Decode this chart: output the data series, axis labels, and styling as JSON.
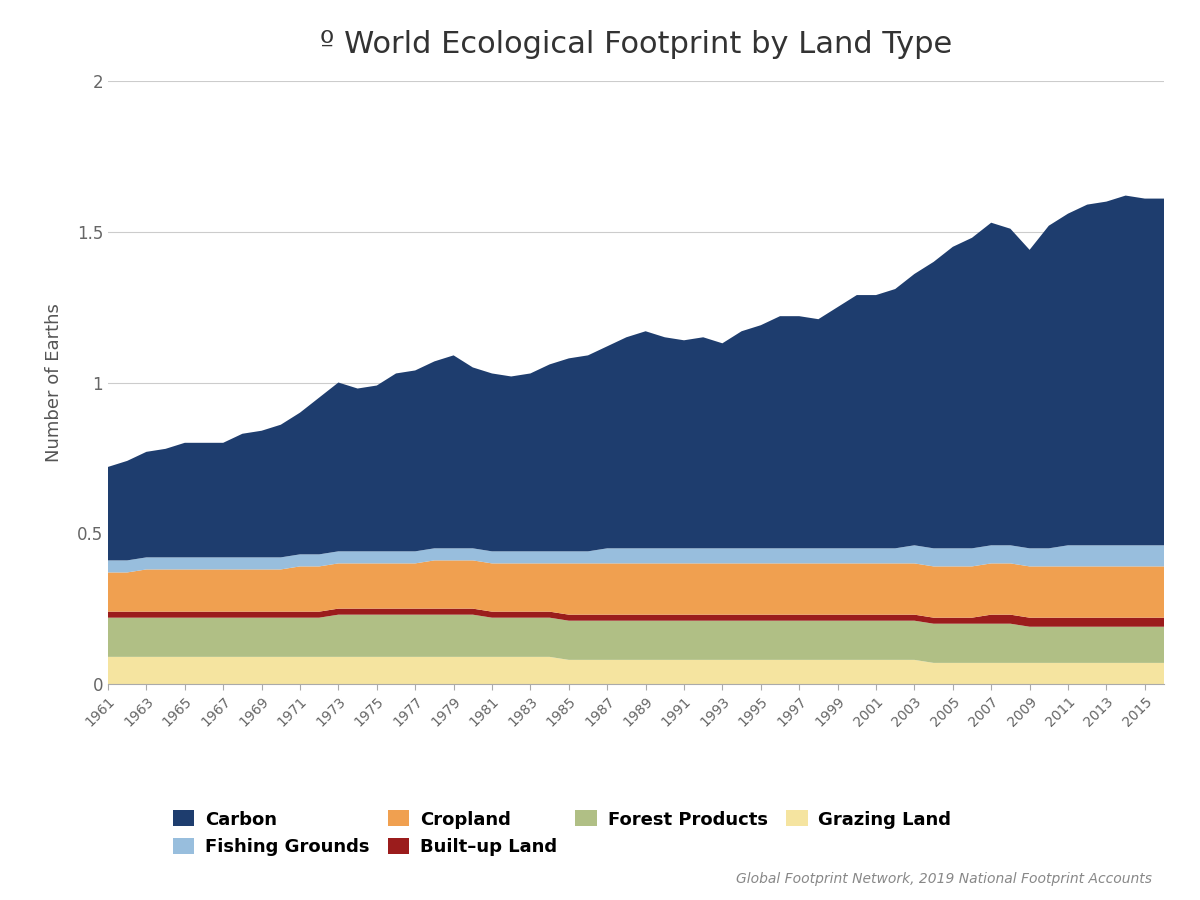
{
  "title": "º World Ecological Footprint by Land Type",
  "ylabel": "Number of Earths",
  "source": "Global Footprint Network, 2019 National Footprint Accounts",
  "background_color": "#ffffff",
  "title_fontsize": 22,
  "ylabel_fontsize": 13,
  "years": [
    1961,
    1962,
    1963,
    1964,
    1965,
    1966,
    1967,
    1968,
    1969,
    1970,
    1971,
    1972,
    1973,
    1974,
    1975,
    1976,
    1977,
    1978,
    1979,
    1980,
    1981,
    1982,
    1983,
    1984,
    1985,
    1986,
    1987,
    1988,
    1989,
    1990,
    1991,
    1992,
    1993,
    1994,
    1995,
    1996,
    1997,
    1998,
    1999,
    2000,
    2001,
    2002,
    2003,
    2004,
    2005,
    2006,
    2007,
    2008,
    2009,
    2010,
    2011,
    2012,
    2013,
    2014,
    2015,
    2016
  ],
  "grazing_land": [
    0.09,
    0.09,
    0.09,
    0.09,
    0.09,
    0.09,
    0.09,
    0.09,
    0.09,
    0.09,
    0.09,
    0.09,
    0.09,
    0.09,
    0.09,
    0.09,
    0.09,
    0.09,
    0.09,
    0.09,
    0.09,
    0.09,
    0.09,
    0.09,
    0.08,
    0.08,
    0.08,
    0.08,
    0.08,
    0.08,
    0.08,
    0.08,
    0.08,
    0.08,
    0.08,
    0.08,
    0.08,
    0.08,
    0.08,
    0.08,
    0.08,
    0.08,
    0.08,
    0.07,
    0.07,
    0.07,
    0.07,
    0.07,
    0.07,
    0.07,
    0.07,
    0.07,
    0.07,
    0.07,
    0.07,
    0.07
  ],
  "forest_products": [
    0.13,
    0.13,
    0.13,
    0.13,
    0.13,
    0.13,
    0.13,
    0.13,
    0.13,
    0.13,
    0.13,
    0.13,
    0.14,
    0.14,
    0.14,
    0.14,
    0.14,
    0.14,
    0.14,
    0.14,
    0.13,
    0.13,
    0.13,
    0.13,
    0.13,
    0.13,
    0.13,
    0.13,
    0.13,
    0.13,
    0.13,
    0.13,
    0.13,
    0.13,
    0.13,
    0.13,
    0.13,
    0.13,
    0.13,
    0.13,
    0.13,
    0.13,
    0.13,
    0.13,
    0.13,
    0.13,
    0.13,
    0.13,
    0.12,
    0.12,
    0.12,
    0.12,
    0.12,
    0.12,
    0.12,
    0.12
  ],
  "built_up_land": [
    0.02,
    0.02,
    0.02,
    0.02,
    0.02,
    0.02,
    0.02,
    0.02,
    0.02,
    0.02,
    0.02,
    0.02,
    0.02,
    0.02,
    0.02,
    0.02,
    0.02,
    0.02,
    0.02,
    0.02,
    0.02,
    0.02,
    0.02,
    0.02,
    0.02,
    0.02,
    0.02,
    0.02,
    0.02,
    0.02,
    0.02,
    0.02,
    0.02,
    0.02,
    0.02,
    0.02,
    0.02,
    0.02,
    0.02,
    0.02,
    0.02,
    0.02,
    0.02,
    0.02,
    0.02,
    0.02,
    0.03,
    0.03,
    0.03,
    0.03,
    0.03,
    0.03,
    0.03,
    0.03,
    0.03,
    0.03
  ],
  "cropland": [
    0.13,
    0.13,
    0.14,
    0.14,
    0.14,
    0.14,
    0.14,
    0.14,
    0.14,
    0.14,
    0.15,
    0.15,
    0.15,
    0.15,
    0.15,
    0.15,
    0.15,
    0.16,
    0.16,
    0.16,
    0.16,
    0.16,
    0.16,
    0.16,
    0.17,
    0.17,
    0.17,
    0.17,
    0.17,
    0.17,
    0.17,
    0.17,
    0.17,
    0.17,
    0.17,
    0.17,
    0.17,
    0.17,
    0.17,
    0.17,
    0.17,
    0.17,
    0.17,
    0.17,
    0.17,
    0.17,
    0.17,
    0.17,
    0.17,
    0.17,
    0.17,
    0.17,
    0.17,
    0.17,
    0.17,
    0.17
  ],
  "fishing_grounds": [
    0.04,
    0.04,
    0.04,
    0.04,
    0.04,
    0.04,
    0.04,
    0.04,
    0.04,
    0.04,
    0.04,
    0.04,
    0.04,
    0.04,
    0.04,
    0.04,
    0.04,
    0.04,
    0.04,
    0.04,
    0.04,
    0.04,
    0.04,
    0.04,
    0.04,
    0.04,
    0.05,
    0.05,
    0.05,
    0.05,
    0.05,
    0.05,
    0.05,
    0.05,
    0.05,
    0.05,
    0.05,
    0.05,
    0.05,
    0.05,
    0.05,
    0.05,
    0.06,
    0.06,
    0.06,
    0.06,
    0.06,
    0.06,
    0.06,
    0.06,
    0.07,
    0.07,
    0.07,
    0.07,
    0.07,
    0.07
  ],
  "carbon": [
    0.31,
    0.33,
    0.35,
    0.36,
    0.38,
    0.38,
    0.38,
    0.41,
    0.42,
    0.44,
    0.47,
    0.52,
    0.56,
    0.54,
    0.55,
    0.59,
    0.6,
    0.62,
    0.64,
    0.6,
    0.59,
    0.58,
    0.59,
    0.62,
    0.64,
    0.65,
    0.67,
    0.7,
    0.72,
    0.7,
    0.69,
    0.7,
    0.68,
    0.72,
    0.74,
    0.77,
    0.77,
    0.76,
    0.8,
    0.84,
    0.84,
    0.86,
    0.9,
    0.95,
    1.0,
    1.03,
    1.07,
    1.05,
    0.99,
    1.07,
    1.1,
    1.13,
    1.14,
    1.16,
    1.15,
    1.15
  ],
  "colors": {
    "grazing_land": "#f5e4a0",
    "forest_products": "#b0bf85",
    "built_up_land": "#9b1c1c",
    "cropland": "#f0a050",
    "fishing_grounds": "#98bedd",
    "carbon": "#1e3d6e"
  },
  "ylim": [
    0,
    2.0
  ],
  "yticks": [
    0,
    0.5,
    1.0,
    1.5,
    2.0
  ],
  "grid_color": "#cccccc",
  "legend_order": [
    "carbon",
    "fishing_grounds",
    "cropland",
    "built_up_land",
    "forest_products",
    "grazing_land"
  ],
  "legend_labels": {
    "carbon": "Carbon",
    "fishing_grounds": "Fishing Grounds",
    "cropland": "Cropland",
    "built_up_land": "Built–up Land",
    "forest_products": "Forest Products",
    "grazing_land": "Grazing Land"
  }
}
